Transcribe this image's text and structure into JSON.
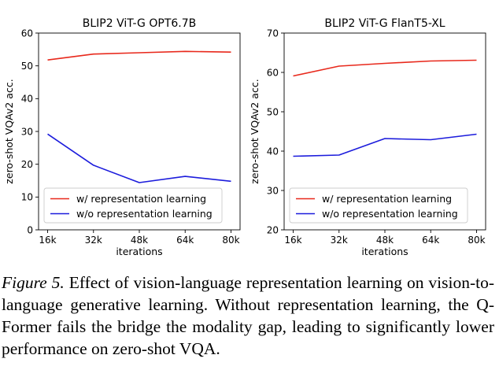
{
  "chart_data": [
    {
      "type": "line",
      "title": "BLIP2 ViT-G OPT6.7B",
      "xlabel": "iterations",
      "ylabel": "zero-shot VQAv2 acc.",
      "categories": [
        "16k",
        "32k",
        "48k",
        "64k",
        "80k"
      ],
      "ylim": [
        0,
        60
      ],
      "yticks": [
        0,
        10,
        20,
        30,
        40,
        50,
        60
      ],
      "legend_position": "lower-left",
      "grid": false,
      "series": [
        {
          "name": "w/ representation learning",
          "color": "#e8291c",
          "values": [
            51.8,
            53.6,
            54.0,
            54.4,
            54.2
          ]
        },
        {
          "name": "w/o representation learning",
          "color": "#1c1cdc",
          "values": [
            29.2,
            19.7,
            14.4,
            16.3,
            14.8
          ]
        }
      ]
    },
    {
      "type": "line",
      "title": "BLIP2 ViT-G FlanT5-XL",
      "xlabel": "iterations",
      "ylabel": "zero-shot VQAv2 acc.",
      "categories": [
        "16k",
        "32k",
        "48k",
        "64k",
        "80k"
      ],
      "ylim": [
        20,
        70
      ],
      "yticks": [
        20,
        30,
        40,
        50,
        60,
        70
      ],
      "legend_position": "lower-left",
      "grid": false,
      "series": [
        {
          "name": "w/ representation learning",
          "color": "#e8291c",
          "values": [
            59.1,
            61.6,
            62.3,
            62.9,
            63.1
          ]
        },
        {
          "name": "w/o representation learning",
          "color": "#1c1cdc",
          "values": [
            38.7,
            39.0,
            43.2,
            42.9,
            44.3
          ]
        }
      ]
    }
  ],
  "caption": {
    "label": "Figure 5.",
    "text": "Effect of vision-language representation learning on vision-to-language generative learning. Without representation learning, the Q-Former fails the bridge the modality gap, leading to significantly lower performance on zero-shot VQA."
  }
}
